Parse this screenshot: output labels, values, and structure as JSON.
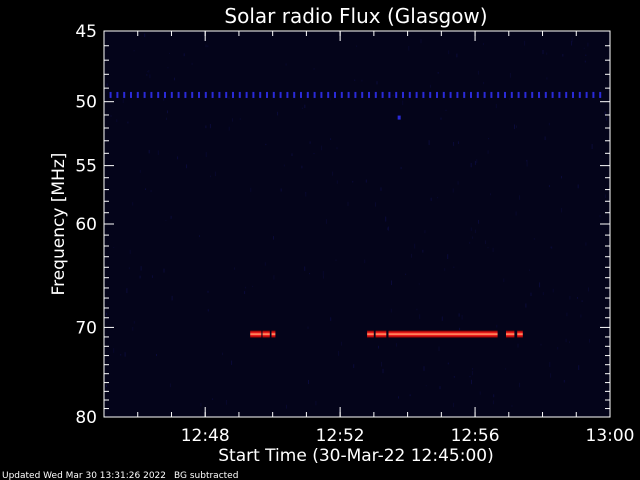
{
  "chart_data": {
    "type": "heatmap",
    "title": "Solar radio Flux (Glasgow)",
    "xlabel": "Start Time (30-Mar-22 12:45:00)",
    "ylabel": "Frequency [MHz]",
    "x_unit": "UT time",
    "xlim": [
      "12:45:00",
      "13:00:00"
    ],
    "x_ticks": [
      "12:48",
      "12:52",
      "12:56",
      "13:00"
    ],
    "ylim": [
      45,
      80
    ],
    "y_reversed": true,
    "y_scale": "log",
    "y_ticks": [
      45,
      50,
      55,
      60,
      70,
      80
    ],
    "background_label": "BG subtracted",
    "features": [
      {
        "kind": "dotted-line",
        "freq_mhz": 49.5,
        "start": "12:45:10",
        "end": "12:59:50",
        "color": "#2a2ad8"
      },
      {
        "kind": "dot",
        "freq_mhz": 51.2,
        "time": "12:53:45",
        "color": "#2a2ad8"
      },
      {
        "kind": "emission",
        "freq_mhz": 70.7,
        "start": "12:49:20",
        "end": "12:49:40",
        "color": "#ff3030"
      },
      {
        "kind": "emission",
        "freq_mhz": 70.7,
        "start": "12:49:42",
        "end": "12:49:55",
        "color": "#ff3030"
      },
      {
        "kind": "emission",
        "freq_mhz": 70.7,
        "start": "12:49:58",
        "end": "12:50:05",
        "color": "#ff3030"
      },
      {
        "kind": "emission",
        "freq_mhz": 70.7,
        "start": "12:52:48",
        "end": "12:53:00",
        "color": "#ff3030"
      },
      {
        "kind": "emission",
        "freq_mhz": 70.7,
        "start": "12:53:03",
        "end": "12:53:22",
        "color": "#ff3030"
      },
      {
        "kind": "emission",
        "freq_mhz": 70.7,
        "start": "12:53:26",
        "end": "12:56:40",
        "color": "#ff3030"
      },
      {
        "kind": "emission",
        "freq_mhz": 70.7,
        "start": "12:56:55",
        "end": "12:57:10",
        "color": "#ff3030"
      },
      {
        "kind": "emission",
        "freq_mhz": 70.7,
        "start": "12:57:15",
        "end": "12:57:25",
        "color": "#ff3030"
      }
    ]
  },
  "footer": {
    "updated": "Updated Wed Mar 30 13:31:26 2022",
    "note": "BG subtracted"
  },
  "colors": {
    "background": "#000000",
    "plot_background": "#04041a",
    "axis": "#ffffff",
    "hot_core": "#ffd0a0"
  }
}
